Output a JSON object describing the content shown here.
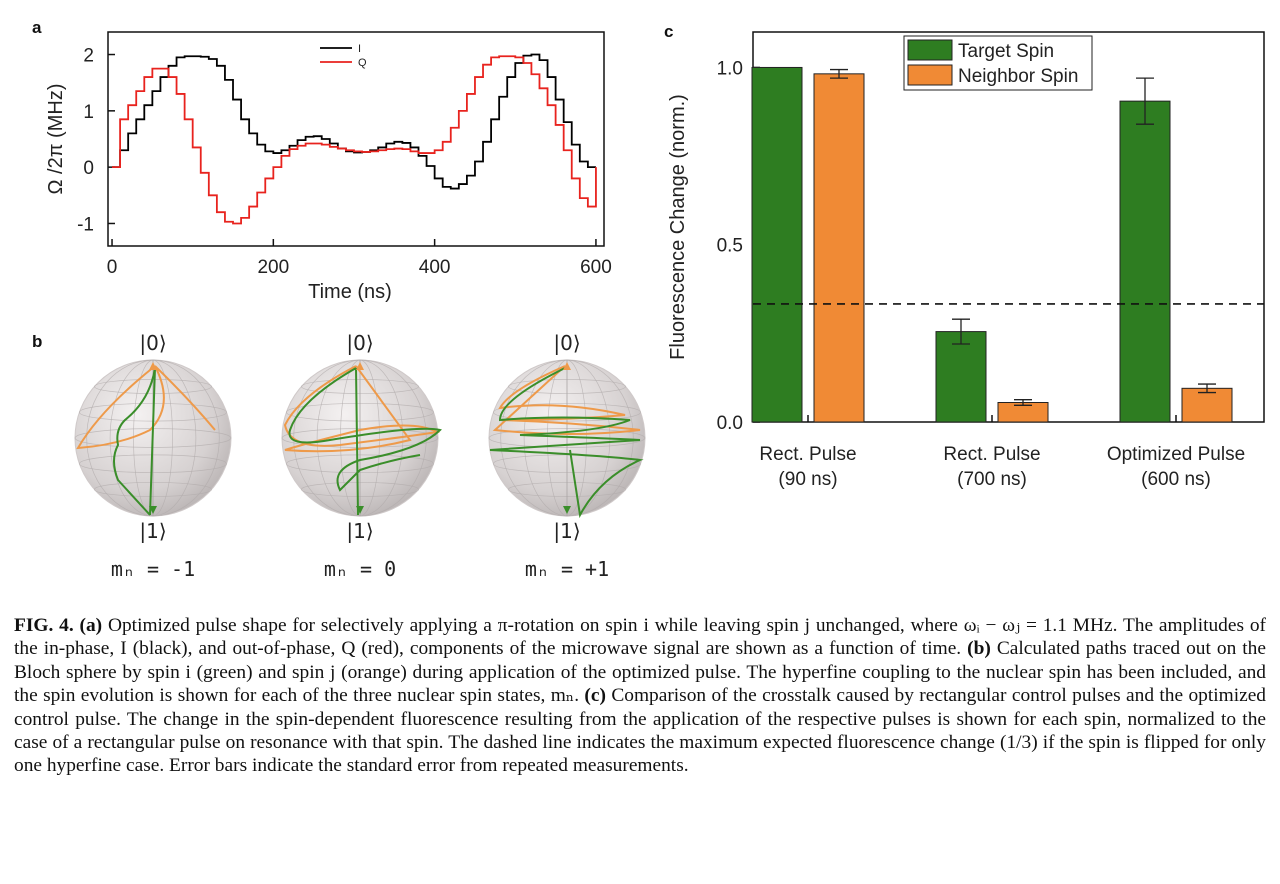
{
  "panels": {
    "a": {
      "letter": "a",
      "chart_data": {
        "type": "line",
        "xlabel": "Time (ns)",
        "ylabel": "Ω /2π (MHz)",
        "xlim": [
          -5,
          610
        ],
        "ylim": [
          -1.4,
          2.4
        ],
        "xticks": [
          0,
          200,
          400,
          600
        ],
        "yticks": [
          -1,
          0,
          1,
          2
        ],
        "xtick_labels": [
          "0",
          "200",
          "400",
          "600"
        ],
        "ytick_labels": [
          "-1",
          "0",
          "1",
          "2"
        ],
        "legend_position": "top-center",
        "series": [
          {
            "name": "I",
            "color": "#000000",
            "x": [
              0,
              10,
              20,
              30,
              40,
              50,
              60,
              70,
              80,
              90,
              100,
              110,
              120,
              130,
              140,
              150,
              160,
              170,
              180,
              190,
              200,
              210,
              220,
              230,
              240,
              250,
              260,
              270,
              280,
              290,
              300,
              310,
              320,
              330,
              340,
              350,
              360,
              370,
              380,
              390,
              400,
              410,
              420,
              430,
              440,
              450,
              460,
              470,
              480,
              490,
              500,
              510,
              520,
              530,
              540,
              550,
              560,
              570,
              580,
              590
            ],
            "y": [
              0.0,
              0.3,
              0.6,
              0.85,
              1.1,
              1.35,
              1.6,
              1.8,
              1.95,
              1.97,
              1.97,
              1.96,
              1.92,
              1.8,
              1.55,
              1.2,
              0.85,
              0.6,
              0.4,
              0.28,
              0.25,
              0.3,
              0.38,
              0.48,
              0.54,
              0.55,
              0.5,
              0.42,
              0.33,
              0.28,
              0.26,
              0.27,
              0.3,
              0.35,
              0.42,
              0.45,
              0.43,
              0.35,
              0.2,
              0.02,
              -0.2,
              -0.35,
              -0.38,
              -0.3,
              -0.15,
              0.1,
              0.45,
              0.85,
              1.25,
              1.6,
              1.85,
              1.98,
              2.0,
              1.9,
              1.6,
              1.2,
              0.8,
              0.4,
              0.1,
              0.0
            ]
          },
          {
            "name": "Q",
            "color": "#e8231e",
            "x": [
              0,
              10,
              20,
              30,
              40,
              50,
              60,
              70,
              80,
              90,
              100,
              110,
              120,
              130,
              140,
              150,
              160,
              170,
              180,
              190,
              200,
              210,
              220,
              230,
              240,
              250,
              260,
              270,
              280,
              290,
              300,
              310,
              320,
              330,
              340,
              350,
              360,
              370,
              380,
              390,
              400,
              410,
              420,
              430,
              440,
              450,
              460,
              470,
              480,
              490,
              500,
              510,
              520,
              530,
              540,
              550,
              560,
              570,
              580,
              590
            ],
            "y": [
              0.0,
              0.85,
              1.1,
              1.35,
              1.6,
              1.75,
              1.75,
              1.6,
              1.3,
              0.85,
              0.35,
              -0.1,
              -0.5,
              -0.8,
              -0.97,
              -1.0,
              -0.9,
              -0.7,
              -0.45,
              -0.2,
              0.0,
              0.2,
              0.32,
              0.38,
              0.42,
              0.42,
              0.4,
              0.36,
              0.33,
              0.3,
              0.28,
              0.27,
              0.28,
              0.3,
              0.32,
              0.33,
              0.32,
              0.28,
              0.25,
              0.25,
              0.3,
              0.45,
              0.7,
              1.0,
              1.3,
              1.6,
              1.82,
              1.95,
              1.97,
              1.97,
              1.95,
              1.85,
              1.65,
              1.4,
              1.1,
              0.75,
              0.3,
              -0.2,
              -0.55,
              -0.7
            ]
          }
        ]
      }
    },
    "b": {
      "letter": "b",
      "spheres": [
        {
          "top_ket": "|0⟩",
          "bottom_ket": "|1⟩",
          "label": "mₙ = -1"
        },
        {
          "top_ket": "|0⟩",
          "bottom_ket": "|1⟩",
          "label": "mₙ = 0"
        },
        {
          "top_ket": "|0⟩",
          "bottom_ket": "|1⟩",
          "label": "mₙ = +1"
        }
      ],
      "colors": {
        "spin_i": "#3a8e2a",
        "spin_j": "#ee9a4a"
      }
    },
    "c": {
      "letter": "c",
      "chart_data": {
        "type": "bar",
        "ylabel": "Fluorescence Change (norm.)",
        "ylim": [
          0,
          1.1
        ],
        "yticks": [
          0.0,
          0.5,
          1.0
        ],
        "ytick_labels": [
          "0.0",
          "0.5",
          "1.0"
        ],
        "categories": [
          [
            "Rect. Pulse",
            "(90 ns)"
          ],
          [
            "Rect. Pulse",
            "(700 ns)"
          ],
          [
            "Optimized Pulse",
            "(600 ns)"
          ]
        ],
        "legend_position": "top-right",
        "dashed_line": 0.333,
        "series": [
          {
            "name": "Target Spin",
            "color": "#2e7d21",
            "values": [
              1.0,
              0.255,
              0.905
            ],
            "errors": [
              0.0,
              0.035,
              0.065
            ]
          },
          {
            "name": "Neighbor Spin",
            "color": "#f08a35",
            "values": [
              0.982,
              0.055,
              0.095
            ],
            "errors": [
              0.012,
              0.008,
              0.012
            ]
          }
        ]
      }
    }
  },
  "caption": {
    "fig": "FIG. 4.",
    "a_tag": "(a)",
    "a_text": " Optimized pulse shape for selectively applying a π-rotation on spin i while leaving spin j unchanged, where ωᵢ − ωⱼ = 1.1 MHz. The amplitudes of the in-phase, I (black), and out-of-phase, Q (red), components of the microwave signal are shown as a function of time. ",
    "b_tag": "(b)",
    "b_text": " Calculated paths traced out on the Bloch sphere by spin i (green) and spin j (orange) during application of the optimized pulse. The hyperfine coupling to the nuclear spin has been included, and the spin evolution is shown for each of the three nuclear spin states, mₙ. ",
    "c_tag": "(c)",
    "c_text": " Comparison of the crosstalk caused by rectangular control pulses and the optimized control pulse. The change in the spin-dependent fluorescence resulting from the application of the respective pulses is shown for each spin, normalized to the case of a rectangular pulse on resonance with that spin. The dashed line indicates the maximum expected fluorescence change (1/3) if the spin is flipped for only one hyperfine case. Error bars indicate the standard error from repeated measurements."
  }
}
